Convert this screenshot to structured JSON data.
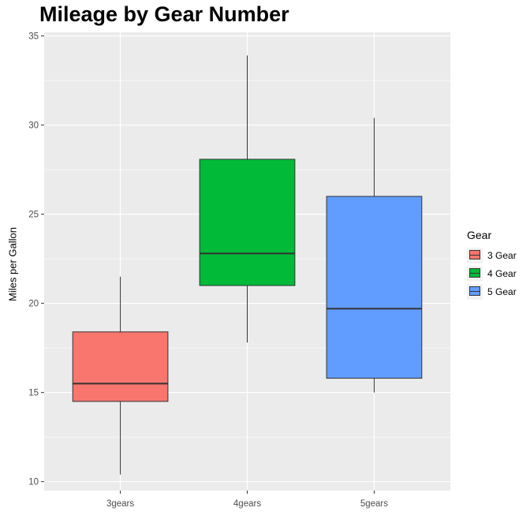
{
  "chart_data": {
    "type": "box",
    "title": "Mileage by Gear Number",
    "xlabel": "",
    "ylabel": "Miles per Gallon",
    "ylim": [
      9.5,
      35.2
    ],
    "yticks": [
      10,
      15,
      20,
      25,
      30,
      35
    ],
    "grid": true,
    "legend_position": "right",
    "legend_title": "Gear",
    "categories": [
      "3gears",
      "4gears",
      "5gears"
    ],
    "series": [
      {
        "name": "3 Gear",
        "category": "3gears",
        "color": "#F8766D",
        "min": 10.4,
        "q1": 14.5,
        "median": 15.5,
        "q3": 18.4,
        "max": 21.5
      },
      {
        "name": "4 Gear",
        "category": "4gears",
        "color": "#00BA38",
        "min": 17.8,
        "q1": 21.0,
        "median": 22.8,
        "q3": 28.08,
        "max": 33.9
      },
      {
        "name": "5 Gear",
        "category": "5gears",
        "color": "#619CFF",
        "min": 15.0,
        "q1": 15.8,
        "median": 19.7,
        "q3": 26.0,
        "max": 30.4
      }
    ]
  }
}
